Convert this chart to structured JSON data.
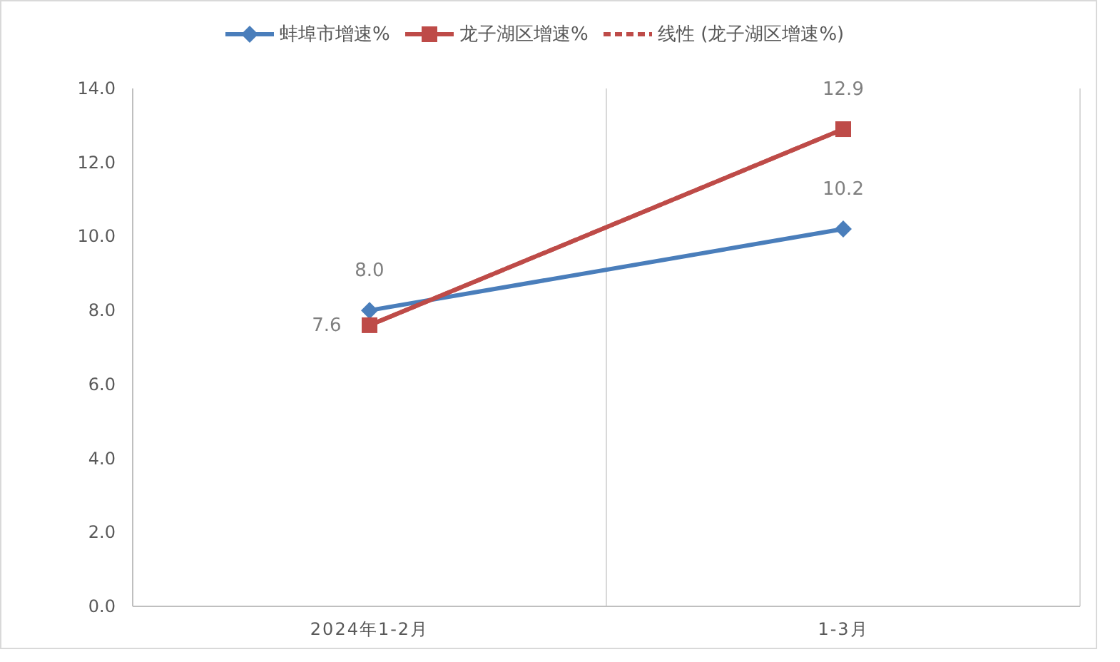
{
  "chart_data": {
    "type": "line",
    "categories": [
      "2024年1-2月",
      "1-3月"
    ],
    "series": [
      {
        "name": "蚌埠市增速%",
        "color": "#4a7ebb",
        "values": [
          8.0,
          10.2
        ],
        "value_labels": [
          "8.0",
          "10.2"
        ],
        "marker": "diamond",
        "line_style": "solid"
      },
      {
        "name": "龙子湖区增速%",
        "color": "#be4b48",
        "values": [
          7.6,
          12.9
        ],
        "value_labels": [
          "7.6",
          "12.9"
        ],
        "marker": "square",
        "line_style": "solid"
      },
      {
        "name": "线性 (龙子湖区增速%)",
        "color": "#be4b48",
        "values": [
          7.6,
          12.9
        ],
        "marker": "none",
        "line_style": "dashed"
      }
    ],
    "ylim": [
      0,
      14
    ],
    "yticks": [
      {
        "value": 0,
        "label": "0.0"
      },
      {
        "value": 2,
        "label": "2.0"
      },
      {
        "value": 4,
        "label": "4.0"
      },
      {
        "value": 6,
        "label": "6.0"
      },
      {
        "value": 8,
        "label": "8.0"
      },
      {
        "value": 10,
        "label": "10.0"
      },
      {
        "value": 12,
        "label": "12.0"
      },
      {
        "value": 14,
        "label": "14.0"
      }
    ],
    "grid": "x",
    "legend": "top"
  }
}
